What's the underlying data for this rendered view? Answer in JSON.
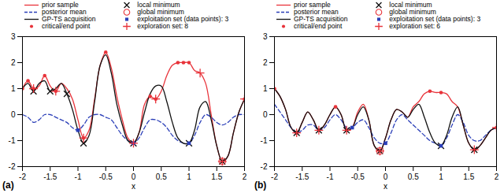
{
  "chart_data": [
    {
      "type": "line",
      "title": "(a)",
      "x_label": "x",
      "legend": "top",
      "xlim": [
        -2,
        2
      ],
      "ylim": [
        -2,
        3
      ],
      "xticks": [
        -2,
        -1.5,
        -1,
        -0.5,
        0,
        0.5,
        1,
        1.5,
        2
      ],
      "yticks": [
        -2,
        -1,
        0,
        1,
        2,
        3
      ],
      "x": [
        -2.0,
        -1.9,
        -1.8,
        -1.7,
        -1.6,
        -1.5,
        -1.4,
        -1.3,
        -1.2,
        -1.1,
        -1.0,
        -0.9,
        -0.8,
        -0.7,
        -0.6,
        -0.5,
        -0.4,
        -0.3,
        -0.2,
        -0.1,
        0.0,
        0.1,
        0.2,
        0.3,
        0.4,
        0.5,
        0.6,
        0.7,
        0.8,
        0.9,
        1.0,
        1.1,
        1.2,
        1.3,
        1.4,
        1.5,
        1.6,
        1.7,
        1.8,
        1.9,
        2.0
      ],
      "series": [
        {
          "name": "prior sample",
          "color": "#e8333a",
          "type": "line",
          "line_style": "solid",
          "values": [
            1.0,
            1.3,
            1.0,
            1.1,
            1.5,
            1.1,
            0.9,
            1.2,
            1.0,
            0.6,
            -0.2,
            -0.9,
            -0.6,
            0.6,
            1.9,
            2.4,
            1.8,
            0.7,
            -0.2,
            -0.9,
            -1.1,
            -0.7,
            0.4,
            0.7,
            0.6,
            0.9,
            1.5,
            1.9,
            2.0,
            2.0,
            2.0,
            1.7,
            1.6,
            1.2,
            0.0,
            -1.2,
            -1.8,
            -1.6,
            -0.7,
            0.1,
            0.6
          ]
        },
        {
          "name": "posterior mean",
          "color": "#2b3fb8",
          "type": "line",
          "line_style": "dashed",
          "values": [
            0.0,
            -0.1,
            -0.3,
            -0.2,
            0.0,
            0.0,
            -0.1,
            -0.2,
            -0.3,
            -0.5,
            -0.6,
            -0.4,
            -0.1,
            0.0,
            0.0,
            -0.1,
            -0.2,
            -0.5,
            -0.8,
            -1.0,
            -1.1,
            -0.9,
            -0.5,
            -0.2,
            -0.2,
            -0.3,
            -0.5,
            -0.8,
            -1.0,
            -1.1,
            -1.1,
            -0.8,
            -0.3,
            0.0,
            -0.1,
            -0.3,
            -0.4,
            -0.3,
            -0.1,
            0.0,
            0.0
          ]
        },
        {
          "name": "GP-TS acquisition",
          "color": "#111111",
          "type": "line",
          "line_style": "solid",
          "values": [
            1.0,
            1.2,
            0.9,
            1.2,
            1.3,
            0.9,
            1.0,
            1.2,
            0.8,
            0.2,
            -0.6,
            -1.1,
            -0.8,
            0.5,
            1.9,
            2.3,
            1.6,
            0.4,
            -0.4,
            -1.0,
            -1.1,
            -0.7,
            0.1,
            0.8,
            1.1,
            1.1,
            0.5,
            -0.3,
            -0.9,
            -1.1,
            -1.1,
            -0.6,
            0.3,
            0.5,
            -0.2,
            -1.2,
            -1.8,
            -1.6,
            -0.7,
            0.1,
            0.6
          ]
        },
        {
          "name": "critical/end point",
          "color": "#e8333a",
          "type": "scatter",
          "marker": "dot",
          "x": [
            -2.0,
            -1.9,
            -1.8,
            -1.6,
            -1.4,
            -0.9,
            -0.5,
            0.0,
            0.3,
            0.4,
            0.8,
            0.9,
            1.0,
            1.6,
            2.0
          ],
          "values": [
            1.0,
            1.3,
            1.0,
            1.5,
            0.9,
            -0.9,
            2.4,
            -1.1,
            0.7,
            0.6,
            2.0,
            2.0,
            2.0,
            -1.8,
            0.6
          ]
        },
        {
          "name": "local minimum",
          "color": "#111111",
          "type": "scatter",
          "marker": "x",
          "x": [
            -1.8,
            -1.5,
            -1.2,
            -0.9,
            0.0,
            1.0,
            1.6
          ],
          "values": [
            0.9,
            0.9,
            0.8,
            -1.1,
            -1.1,
            -1.1,
            -1.8
          ]
        },
        {
          "name": "global minimum",
          "color": "#e8333a",
          "type": "scatter",
          "marker": "circle",
          "x": [
            1.6
          ],
          "values": [
            -1.8
          ]
        },
        {
          "name": "exploitation set (data points): 3",
          "color": "#2b3fb8",
          "type": "scatter",
          "marker": "square",
          "x": [
            -1.0,
            0.0,
            1.0
          ],
          "values": [
            -0.6,
            -1.1,
            -1.1
          ]
        },
        {
          "name": "exploration set: 8",
          "color": "#e8333a",
          "type": "scatter",
          "marker": "plus",
          "x": [
            -1.8,
            -1.4,
            -0.9,
            0.0,
            0.4,
            1.2,
            1.6,
            2.0
          ],
          "values": [
            1.0,
            0.9,
            -0.9,
            -1.1,
            0.6,
            1.6,
            -1.8,
            0.6
          ]
        }
      ]
    },
    {
      "type": "line",
      "title": "(b)",
      "x_label": "x",
      "legend": "top",
      "xlim": [
        -2,
        2
      ],
      "ylim": [
        -2,
        3
      ],
      "xticks": [
        -2,
        -1.5,
        -1,
        -0.5,
        0,
        0.5,
        1,
        1.5,
        2
      ],
      "yticks": [
        -2,
        -1,
        0,
        1,
        2,
        3
      ],
      "x": [
        -2.0,
        -1.9,
        -1.8,
        -1.7,
        -1.6,
        -1.5,
        -1.4,
        -1.3,
        -1.2,
        -1.1,
        -1.0,
        -0.9,
        -0.8,
        -0.7,
        -0.6,
        -0.5,
        -0.4,
        -0.3,
        -0.2,
        -0.1,
        0.0,
        0.1,
        0.2,
        0.3,
        0.4,
        0.5,
        0.6,
        0.7,
        0.8,
        0.9,
        1.0,
        1.1,
        1.2,
        1.3,
        1.4,
        1.5,
        1.6,
        1.7,
        1.8,
        1.9,
        2.0
      ],
      "series": [
        {
          "name": "prior sample",
          "color": "#e8333a",
          "type": "line",
          "line_style": "solid",
          "values": [
            1.0,
            0.7,
            0.2,
            -0.5,
            -0.7,
            -0.3,
            0.1,
            -0.2,
            -0.6,
            -0.4,
            0.0,
            0.3,
            0.0,
            -0.6,
            -0.5,
            0.1,
            0.4,
            -0.2,
            -1.2,
            -1.4,
            -0.9,
            -0.2,
            0.2,
            0.1,
            -0.1,
            0.3,
            0.5,
            0.8,
            0.9,
            0.85,
            0.85,
            0.8,
            0.5,
            0.3,
            -0.4,
            -1.1,
            -1.35,
            -1.2,
            -0.9,
            -0.6,
            -0.5
          ]
        },
        {
          "name": "posterior mean",
          "color": "#2b3fb8",
          "type": "line",
          "line_style": "dashed",
          "values": [
            0.4,
            0.1,
            -0.2,
            -0.5,
            -0.7,
            -0.6,
            -0.4,
            -0.4,
            -0.6,
            -0.5,
            -0.2,
            0.0,
            -0.2,
            -0.5,
            -0.5,
            -0.3,
            -0.2,
            -0.5,
            -0.9,
            -1.1,
            -1.1,
            -0.7,
            -0.2,
            0.0,
            -0.2,
            -0.4,
            -0.6,
            -0.8,
            -1.0,
            -1.1,
            -1.2,
            -0.9,
            -0.4,
            0.0,
            -0.3,
            -0.8,
            -1.0,
            -1.0,
            -0.8,
            -0.6,
            -0.5
          ]
        },
        {
          "name": "GP-TS acquisition",
          "color": "#111111",
          "type": "line",
          "line_style": "solid",
          "values": [
            1.0,
            0.7,
            0.2,
            -0.5,
            -0.7,
            -0.3,
            0.1,
            -0.2,
            -0.6,
            -0.4,
            0.0,
            0.3,
            0.0,
            -0.6,
            -0.5,
            0.0,
            0.3,
            -0.2,
            -1.2,
            -1.4,
            -0.9,
            -0.2,
            0.2,
            0.1,
            -0.1,
            0.2,
            0.4,
            -0.1,
            -0.7,
            -1.1,
            -1.2,
            -0.8,
            -0.1,
            0.3,
            -0.4,
            -1.1,
            -1.35,
            -1.2,
            -0.9,
            -0.6,
            -0.5
          ]
        },
        {
          "name": "critical/end point",
          "color": "#e8333a",
          "type": "scatter",
          "marker": "dot",
          "x": [
            -2.0,
            -1.6,
            -1.2,
            -0.9,
            -0.7,
            -0.1,
            0.8,
            1.0,
            1.6,
            2.0
          ],
          "values": [
            1.0,
            -0.7,
            -0.6,
            0.3,
            -0.6,
            -1.4,
            0.9,
            0.85,
            -1.35,
            -0.5
          ]
        },
        {
          "name": "local minimum",
          "color": "#111111",
          "type": "scatter",
          "marker": "x",
          "x": [
            -1.6,
            -1.2,
            -0.7,
            -0.1,
            1.0,
            1.6
          ],
          "values": [
            -0.7,
            -0.6,
            -0.6,
            -1.4,
            -1.2,
            -1.35
          ]
        },
        {
          "name": "global minimum",
          "color": "#e8333a",
          "type": "scatter",
          "marker": "circle",
          "x": [
            -0.1
          ],
          "values": [
            -1.4
          ]
        },
        {
          "name": "exploitation set (data points): 3",
          "color": "#2b3fb8",
          "type": "scatter",
          "marker": "square",
          "x": [
            -0.6,
            0.0,
            1.0
          ],
          "values": [
            -0.5,
            -1.1,
            -1.2
          ]
        },
        {
          "name": "exploration set: 6",
          "color": "#e8333a",
          "type": "scatter",
          "marker": "plus",
          "x": [
            -1.6,
            -1.2,
            -0.7,
            -0.1,
            1.6,
            2.0
          ],
          "values": [
            -0.7,
            -0.6,
            -0.6,
            -1.4,
            -1.35,
            -0.5
          ]
        }
      ]
    }
  ]
}
